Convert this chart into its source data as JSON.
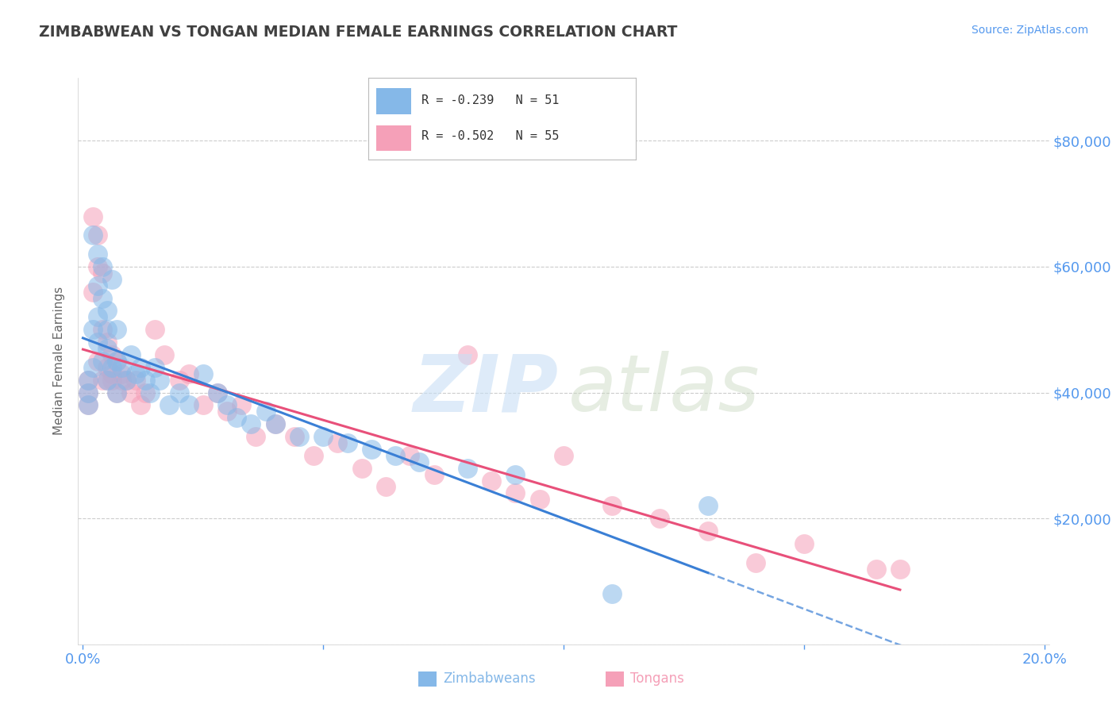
{
  "title": "ZIMBABWEAN VS TONGAN MEDIAN FEMALE EARNINGS CORRELATION CHART",
  "source": "Source: ZipAtlas.com",
  "ylabel": "Median Female Earnings",
  "xlim": [
    -0.001,
    0.201
  ],
  "ylim": [
    0,
    90000
  ],
  "ytick_vals": [
    0,
    20000,
    40000,
    60000,
    80000
  ],
  "xtick_vals": [
    0.0,
    0.05,
    0.1,
    0.15,
    0.2
  ],
  "xtick_labels": [
    "0.0%",
    "",
    "",
    "",
    "20.0%"
  ],
  "grid_color": "#cccccc",
  "bg_color": "#ffffff",
  "zim_color": "#85b8e8",
  "ton_color": "#f5a0b8",
  "zim_line_color": "#3a7fd5",
  "ton_line_color": "#e8507a",
  "axis_label_color": "#5599ee",
  "title_color": "#404040",
  "zim_R": -0.239,
  "zim_N": 51,
  "ton_R": -0.502,
  "ton_N": 55,
  "zim_x": [
    0.001,
    0.001,
    0.001,
    0.002,
    0.002,
    0.002,
    0.003,
    0.003,
    0.003,
    0.003,
    0.004,
    0.004,
    0.004,
    0.005,
    0.005,
    0.005,
    0.005,
    0.006,
    0.006,
    0.007,
    0.007,
    0.007,
    0.008,
    0.009,
    0.01,
    0.011,
    0.012,
    0.013,
    0.014,
    0.015,
    0.016,
    0.018,
    0.02,
    0.022,
    0.025,
    0.028,
    0.03,
    0.032,
    0.035,
    0.038,
    0.04,
    0.045,
    0.05,
    0.055,
    0.06,
    0.065,
    0.07,
    0.08,
    0.09,
    0.11,
    0.13
  ],
  "zim_y": [
    42000,
    40000,
    38000,
    65000,
    50000,
    44000,
    62000,
    57000,
    52000,
    48000,
    60000,
    55000,
    45000,
    53000,
    50000,
    47000,
    42000,
    58000,
    44000,
    50000,
    45000,
    40000,
    44000,
    42000,
    46000,
    43000,
    44000,
    42000,
    40000,
    44000,
    42000,
    38000,
    40000,
    38000,
    43000,
    40000,
    38000,
    36000,
    35000,
    37000,
    35000,
    33000,
    33000,
    32000,
    31000,
    30000,
    29000,
    28000,
    27000,
    8000,
    22000
  ],
  "ton_x": [
    0.001,
    0.001,
    0.001,
    0.002,
    0.002,
    0.003,
    0.003,
    0.003,
    0.004,
    0.004,
    0.004,
    0.005,
    0.005,
    0.005,
    0.006,
    0.006,
    0.006,
    0.007,
    0.007,
    0.008,
    0.008,
    0.009,
    0.01,
    0.011,
    0.012,
    0.013,
    0.015,
    0.017,
    0.02,
    0.022,
    0.025,
    0.028,
    0.03,
    0.033,
    0.036,
    0.04,
    0.044,
    0.048,
    0.053,
    0.058,
    0.063,
    0.068,
    0.073,
    0.08,
    0.085,
    0.09,
    0.095,
    0.1,
    0.11,
    0.12,
    0.13,
    0.14,
    0.15,
    0.165,
    0.17
  ],
  "ton_y": [
    42000,
    40000,
    38000,
    68000,
    56000,
    65000,
    60000,
    45000,
    59000,
    50000,
    42000,
    48000,
    44000,
    42000,
    46000,
    43000,
    42000,
    45000,
    40000,
    43000,
    42000,
    42000,
    40000,
    42000,
    38000,
    40000,
    50000,
    46000,
    42000,
    43000,
    38000,
    40000,
    37000,
    38000,
    33000,
    35000,
    33000,
    30000,
    32000,
    28000,
    25000,
    30000,
    27000,
    46000,
    26000,
    24000,
    23000,
    30000,
    22000,
    20000,
    18000,
    13000,
    16000,
    12000,
    12000
  ]
}
